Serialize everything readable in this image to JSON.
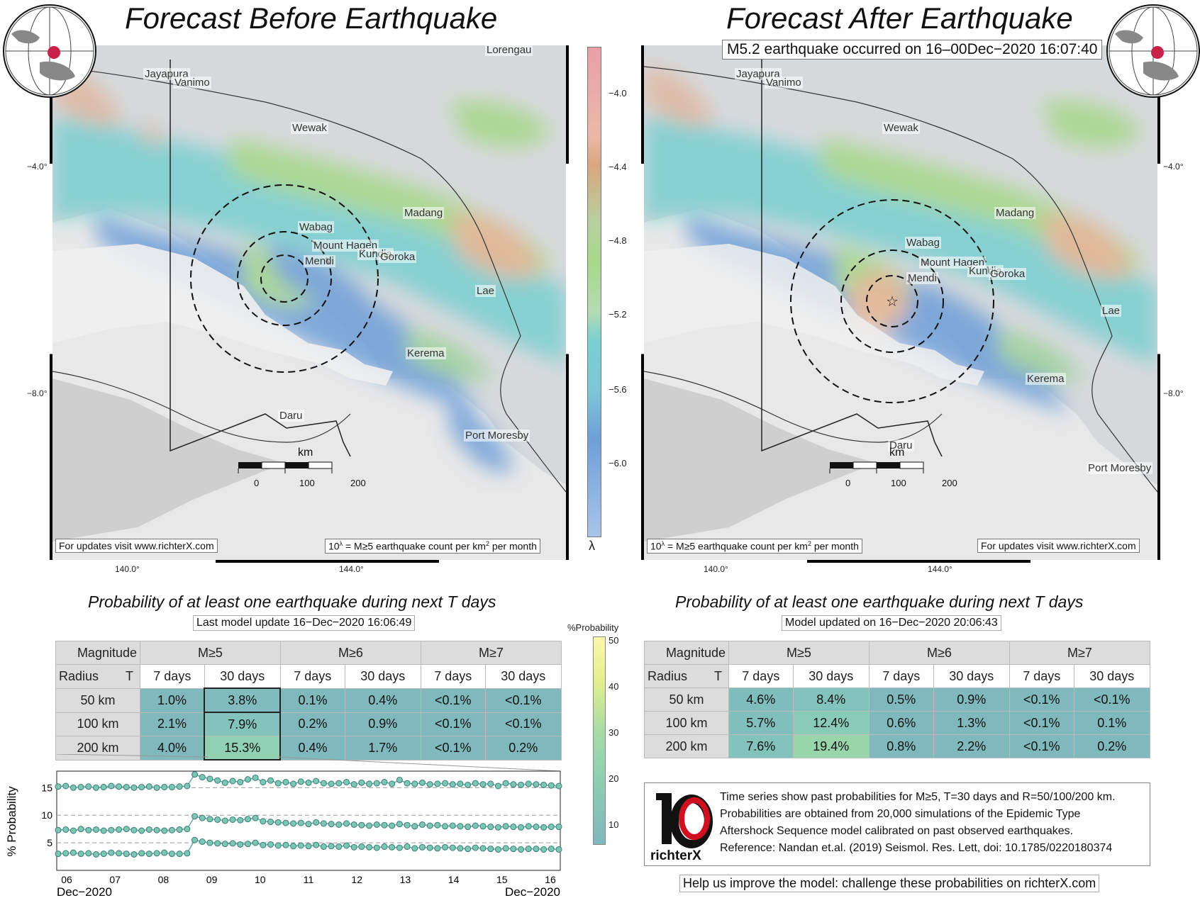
{
  "left_title": "Forecast Before Earthquake",
  "right_title": "Forecast After Earthquake",
  "quake_note": "M5.2 earthquake occurred on 16–00Dec−2020 16:07:40",
  "update_url_note": "For updates visit www.richterX.com",
  "lambda_note_prefix": "10",
  "lambda_note_sup": "λ",
  "lambda_note_mid": " = M≥5 earthquake count per km",
  "lambda_note_sup2": "2",
  "lambda_note_suffix": " per month",
  "places": [
    "Jayapura",
    "Vanimo",
    "Wewak",
    "Madang",
    "Wabag",
    "Mount Hagen",
    "Mendi",
    "Kundia",
    "Goroka",
    "Lae",
    "Kerema",
    "Daru",
    "Port Moresby",
    "Lorengau"
  ],
  "scale": {
    "unit": "km",
    "ticks": [
      "0",
      "100",
      "200"
    ]
  },
  "lat_ticks": [
    "−4.0°",
    "−8.0°"
  ],
  "lon_ticks": [
    "140.0°",
    "144.0°"
  ],
  "colorbar_lambda": {
    "ticks": [
      "−4.0",
      "−4.4",
      "−4.8",
      "−5.2",
      "−5.6",
      "−6.0"
    ],
    "label": "λ"
  },
  "prob_title": "Probability of at least one earthquake during next T days",
  "left_subtitle": "Last model update 16−Dec−2020 16:06:49",
  "right_subtitle": "Model updated on 16−Dec−2020 20:06:43",
  "table_headers": {
    "magnitude": "Magnitude",
    "radius": "Radius",
    "t": "T",
    "m5": "M≥5",
    "m6": "M≥6",
    "m7": "M≥7",
    "d7": "7 days",
    "d30": "30 days"
  },
  "rows": [
    "50 km",
    "100 km",
    "200 km"
  ],
  "left_table": [
    [
      "1.0%",
      "3.8%",
      "0.1%",
      "0.4%",
      "<0.1%",
      "<0.1%"
    ],
    [
      "2.1%",
      "7.9%",
      "0.2%",
      "0.9%",
      "<0.1%",
      "<0.1%"
    ],
    [
      "4.0%",
      "15.3%",
      "0.4%",
      "1.7%",
      "<0.1%",
      "0.2%"
    ]
  ],
  "right_table": [
    [
      "4.6%",
      "8.4%",
      "0.5%",
      "0.9%",
      "<0.1%",
      "<0.1%"
    ],
    [
      "5.7%",
      "12.4%",
      "0.6%",
      "1.3%",
      "<0.1%",
      "0.1%"
    ],
    [
      "7.6%",
      "19.4%",
      "0.8%",
      "2.2%",
      "<0.1%",
      "0.2%"
    ]
  ],
  "colorbar_prob": {
    "label": "%Probability",
    "ticks": [
      "50",
      "40",
      "30",
      "20",
      "10"
    ]
  },
  "colors": {
    "cell_low": "#7fb8bd",
    "cell_mid": "#8fd1b0",
    "cell_high": "#a8dca5",
    "header": "#dcdcdc",
    "series": "#78c8b4"
  },
  "chart_data": {
    "type": "line",
    "ylabel": "% Probability",
    "ylim": [
      0,
      18
    ],
    "yticks": [
      5,
      10,
      15
    ],
    "x_ticks": [
      "06",
      "07",
      "08",
      "09",
      "10",
      "11",
      "12",
      "13",
      "14",
      "15",
      "16"
    ],
    "x_start_label": "Dec−2020",
    "x_end_label": "Dec−2020",
    "series": [
      {
        "values": [
          15.2,
          15.3,
          15.0,
          15.1,
          15.2,
          15.0,
          15.1,
          15.3,
          15.2,
          15.1,
          15.0,
          15.1,
          15.2,
          15.0,
          15.1,
          15.1,
          15.2,
          15.3,
          17.4,
          16.9,
          16.6,
          16.3,
          15.9,
          16.2,
          16.0,
          16.5,
          16.8,
          16.0,
          16.3,
          15.8,
          16.0,
          15.7,
          16.1,
          15.9,
          16.2,
          15.8,
          15.7,
          15.8,
          16.0,
          15.6,
          15.9,
          15.7,
          15.8,
          16.0,
          15.7,
          16.4,
          15.8,
          15.7,
          15.9,
          15.6,
          15.7,
          15.8,
          15.6,
          15.7,
          15.5,
          15.8,
          15.6,
          15.7,
          15.3,
          15.8,
          15.6,
          15.5,
          15.7,
          15.6,
          15.5,
          15.4,
          15.3
        ]
      },
      {
        "values": [
          7.3,
          7.4,
          7.2,
          7.5,
          7.3,
          7.4,
          7.2,
          7.3,
          7.4,
          7.5,
          7.3,
          7.2,
          7.4,
          7.3,
          7.2,
          7.3,
          7.4,
          7.5,
          9.8,
          9.5,
          9.3,
          9.2,
          9.0,
          9.2,
          9.1,
          9.3,
          9.5,
          8.9,
          8.8,
          8.7,
          8.6,
          8.5,
          8.6,
          8.4,
          8.7,
          8.5,
          8.4,
          8.3,
          8.5,
          8.3,
          8.2,
          8.1,
          8.3,
          8.2,
          8.1,
          8.4,
          8.2,
          8.0,
          8.3,
          8.1,
          8.2,
          8.0,
          8.1,
          8.0,
          7.9,
          8.1,
          8.0,
          7.9,
          7.8,
          8.0,
          7.9,
          7.8,
          8.0,
          7.9,
          7.8,
          7.9,
          7.9
        ]
      },
      {
        "values": [
          3.0,
          3.1,
          3.2,
          3.0,
          3.1,
          2.9,
          3.0,
          3.2,
          3.1,
          3.0,
          2.9,
          3.1,
          3.0,
          3.1,
          3.2,
          3.0,
          3.0,
          3.1,
          5.5,
          5.2,
          5.0,
          4.9,
          4.8,
          4.9,
          4.7,
          4.8,
          5.0,
          4.6,
          4.7,
          4.5,
          4.6,
          4.4,
          4.5,
          4.4,
          4.6,
          4.3,
          4.4,
          4.3,
          4.5,
          4.2,
          4.3,
          4.2,
          4.1,
          4.3,
          4.2,
          4.1,
          4.3,
          4.0,
          4.2,
          4.1,
          4.0,
          4.2,
          4.1,
          4.0,
          3.9,
          4.1,
          4.0,
          3.9,
          3.8,
          4.0,
          3.9,
          3.8,
          3.9,
          3.9,
          3.8,
          3.9,
          3.8
        ]
      }
    ]
  },
  "legend_lines": [
    "Time series show past probabilities for M≥5, T=30 days and R=50/100/200 km.",
    "Probabilities are obtained from 20,000 simulations of the Epidemic Type",
    "Aftershock Sequence model calibrated on past observed earthquakes.",
    "Reference: Nandan et.al. (2019) Seismol. Res. Lett, doi: 10.1785/0220180374"
  ],
  "logo_text": "richterX",
  "footer_note": "Help us improve the model: challenge these probabilities on richterX.com"
}
